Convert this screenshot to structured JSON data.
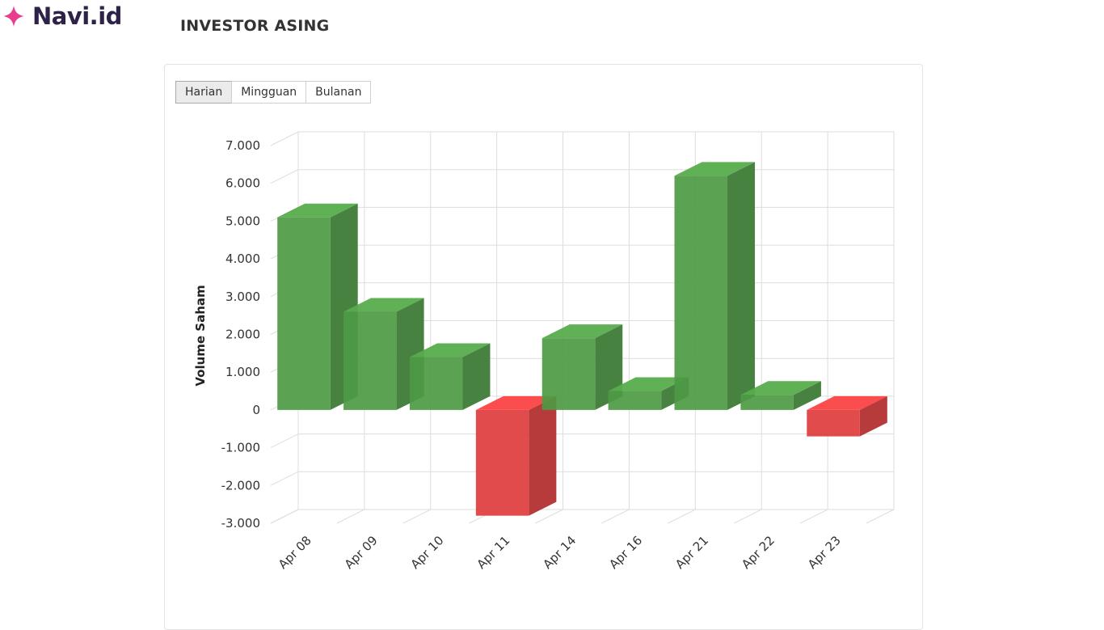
{
  "brand": {
    "name": "Navi.id",
    "logo_icon": "sparkle-icon",
    "color": "#e83c8f"
  },
  "page": {
    "title": "INVESTOR ASING"
  },
  "period_tabs": [
    {
      "label": "Harian",
      "active": true
    },
    {
      "label": "Mingguan",
      "active": false
    },
    {
      "label": "Bulanan",
      "active": false
    }
  ],
  "chart_data": {
    "type": "bar",
    "style": "3d-column",
    "title": "",
    "xlabel": "",
    "ylabel": "Volume Saham",
    "ylim": [
      -3000,
      7000
    ],
    "yticks": [
      -3000,
      -2000,
      -1000,
      0,
      1000,
      2000,
      3000,
      4000,
      5000,
      6000,
      7000
    ],
    "ytick_labels": [
      "-3.000",
      "-2.000",
      "-1.000",
      "0",
      "1.000",
      "2.000",
      "3.000",
      "4.000",
      "5.000",
      "6.000",
      "7.000"
    ],
    "grid": true,
    "categories": [
      "Apr 08",
      "Apr 09",
      "Apr 10",
      "Apr 11",
      "Apr 14",
      "Apr 16",
      "Apr 21",
      "Apr 22",
      "Apr 23"
    ],
    "series": [
      {
        "name": "Volume Saham",
        "values": [
          5100,
          2600,
          1400,
          -2800,
          1900,
          500,
          6200,
          400,
          -700
        ]
      }
    ],
    "colors": {
      "positive": "#4e9a44",
      "negative": "#e03c3c"
    }
  }
}
